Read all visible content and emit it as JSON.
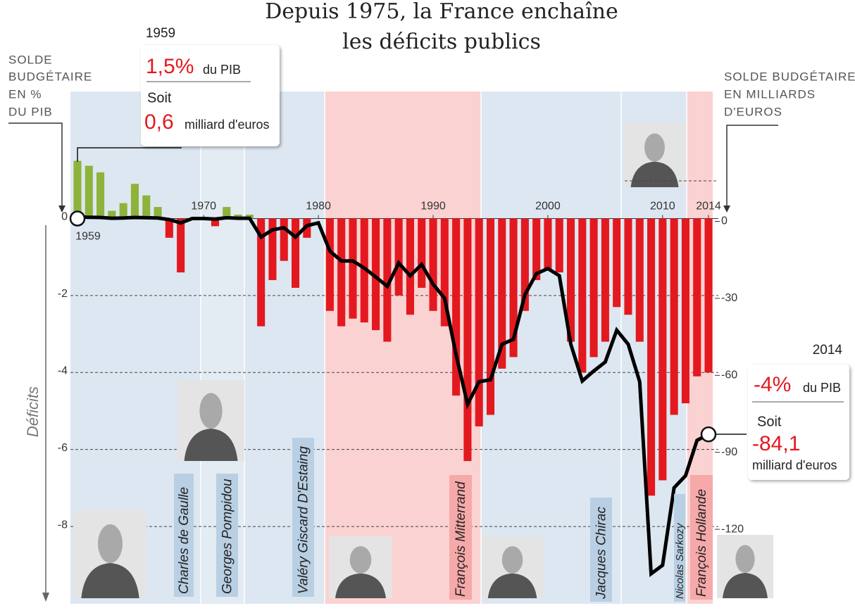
{
  "chart_data": {
    "type": "bar",
    "title": [
      "Depuis 1975, la France enchaîne",
      "les déficits publics"
    ],
    "y_axis_title": [
      "SOLDE",
      "BUDGÉTAIRE",
      "EN %",
      "DU PIB"
    ],
    "y2_axis_title": [
      "SOLDE BUDGÉTAIRE",
      "EN MILLIARDS",
      "D'EUROS"
    ],
    "deficit_label": "Déficits",
    "x": [
      1959,
      1960,
      1961,
      1962,
      1963,
      1964,
      1965,
      1966,
      1967,
      1968,
      1969,
      1970,
      1971,
      1972,
      1973,
      1974,
      1975,
      1976,
      1977,
      1978,
      1979,
      1980,
      1981,
      1982,
      1983,
      1984,
      1985,
      1986,
      1987,
      1988,
      1989,
      1990,
      1991,
      1992,
      1993,
      1994,
      1995,
      1996,
      1997,
      1998,
      1999,
      2000,
      2001,
      2002,
      2003,
      2004,
      2005,
      2006,
      2007,
      2008,
      2009,
      2010,
      2011,
      2012,
      2013,
      2014
    ],
    "xlim": [
      1959,
      2014
    ],
    "xticks": [
      1959,
      1970,
      1980,
      1990,
      2000,
      2010,
      2014
    ],
    "ylim": [
      -9.9,
      3.3
    ],
    "yticks": [
      0,
      -2,
      -4,
      -6,
      -8
    ],
    "y2lim": [
      -148.5,
      49.5
    ],
    "y2ticks": [
      0,
      -30,
      -60,
      -90,
      -120
    ],
    "grid": true,
    "series": [
      {
        "type": "bar",
        "positive_color": "#8db33a",
        "negative_color": "#e3191f",
        "values": [
          1.5,
          1.37,
          1.2,
          0.2,
          0.4,
          0.9,
          0.6,
          0.3,
          -0.5,
          -1.4,
          0,
          0,
          -0.2,
          0.3,
          0.1,
          0.1,
          -2.8,
          -1.6,
          -1.1,
          -1.8,
          -0.5,
          0,
          -2.4,
          -2.8,
          -2.6,
          -2.7,
          -2.9,
          -3.2,
          -2.0,
          -2.5,
          -1.8,
          -2.4,
          -2.8,
          -4.6,
          -6.3,
          -5.4,
          -5.1,
          -3.9,
          -3.6,
          -2.4,
          -1.6,
          -1.3,
          -1.4,
          -3.2,
          -4.0,
          -3.6,
          -3.2,
          -2.3,
          -2.5,
          -3.2,
          -7.2,
          -6.8,
          -5.1,
          -4.8,
          -4.1,
          -4.0
        ]
      },
      {
        "type": "line",
        "axis": "y2",
        "color": "#000000",
        "values": [
          0.6,
          0.5,
          0.4,
          0.1,
          0.2,
          0.4,
          0.3,
          0.2,
          -0.4,
          -1.7,
          0,
          0,
          -0.2,
          0.3,
          0.1,
          0.1,
          -7.2,
          -4.4,
          -3.6,
          -7.2,
          -2.8,
          -1.7,
          -12.7,
          -16.5,
          -16.5,
          -19.3,
          -22.8,
          -26.4,
          -17.3,
          -22.3,
          -17.9,
          -25.6,
          -31.1,
          -53.1,
          -72.4,
          -63.6,
          -62.8,
          -49,
          -47,
          -29.7,
          -21.5,
          -19.5,
          -22.3,
          -49,
          -63.3,
          -59.4,
          -55.9,
          -43.5,
          -49,
          -63.6,
          -138.4,
          -135.1,
          -104.9,
          -100.2,
          -86.4,
          -84.1
        ]
      }
    ],
    "annotations": [
      {
        "year": "1959",
        "pct": "1,5%",
        "pct_unit": "du PIB",
        "soit": "Soit",
        "amount": "0,6",
        "amount_unit": "milliard d'euros"
      },
      {
        "year": "2014",
        "pct": "-4%",
        "pct_unit": "du PIB",
        "soit": "Soit",
        "amount": "-84,1",
        "amount_unit": "milliard d'euros"
      }
    ],
    "presidents": [
      {
        "name": "Charles de Gaulle",
        "color": "#b9cfe3"
      },
      {
        "name": "Georges Pompidou",
        "color": "#b9cfe3"
      },
      {
        "name": "Valéry Giscard D'Estaing",
        "color": "#b9cfe3"
      },
      {
        "name": "François Mitterrand",
        "color": "#f6a9a9"
      },
      {
        "name": "Jacques Chirac",
        "color": "#b9cfe3"
      },
      {
        "name": "Nicolas Sarkozy",
        "color": "#b9cfe3"
      },
      {
        "name": "François Hollande",
        "color": "#f6a9a9"
      }
    ]
  }
}
